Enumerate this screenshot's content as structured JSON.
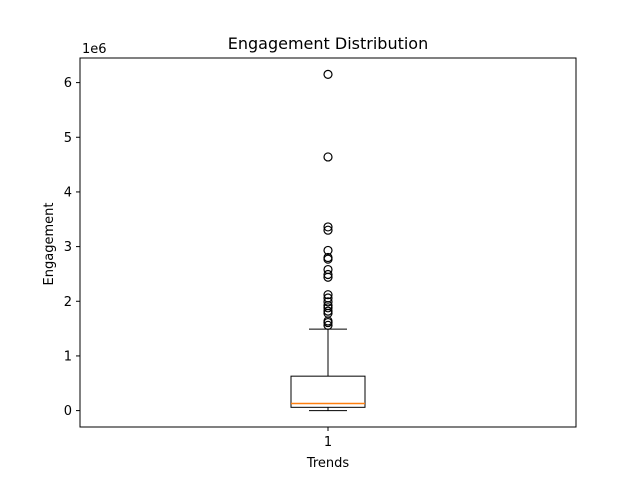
{
  "chart_data": {
    "type": "box",
    "title": "Engagement Distribution",
    "xlabel": "Trends",
    "ylabel": "Engagement",
    "y_offset_label": "1e6",
    "categories": [
      "1"
    ],
    "ylim": [
      -300000,
      6450000
    ],
    "yticks": [
      0,
      1000000,
      2000000,
      3000000,
      4000000,
      5000000,
      6000000
    ],
    "ytick_labels": [
      "0",
      "1",
      "2",
      "3",
      "4",
      "5",
      "6"
    ],
    "boxes": [
      {
        "category": "1",
        "whisker_low": 0,
        "q1": 60000,
        "median": 130000,
        "q3": 630000,
        "whisker_high": 1490000,
        "outliers": [
          6150000,
          4640000,
          3360000,
          3300000,
          2930000,
          2800000,
          2770000,
          2580000,
          2490000,
          2440000,
          2120000,
          2060000,
          1990000,
          1920000,
          1880000,
          1820000,
          1780000,
          1640000,
          1610000,
          1560000
        ]
      }
    ],
    "colors": {
      "box": "#000000",
      "median": "#ff7f0e",
      "flier": "#000000"
    },
    "grid": false,
    "legend": "none"
  }
}
